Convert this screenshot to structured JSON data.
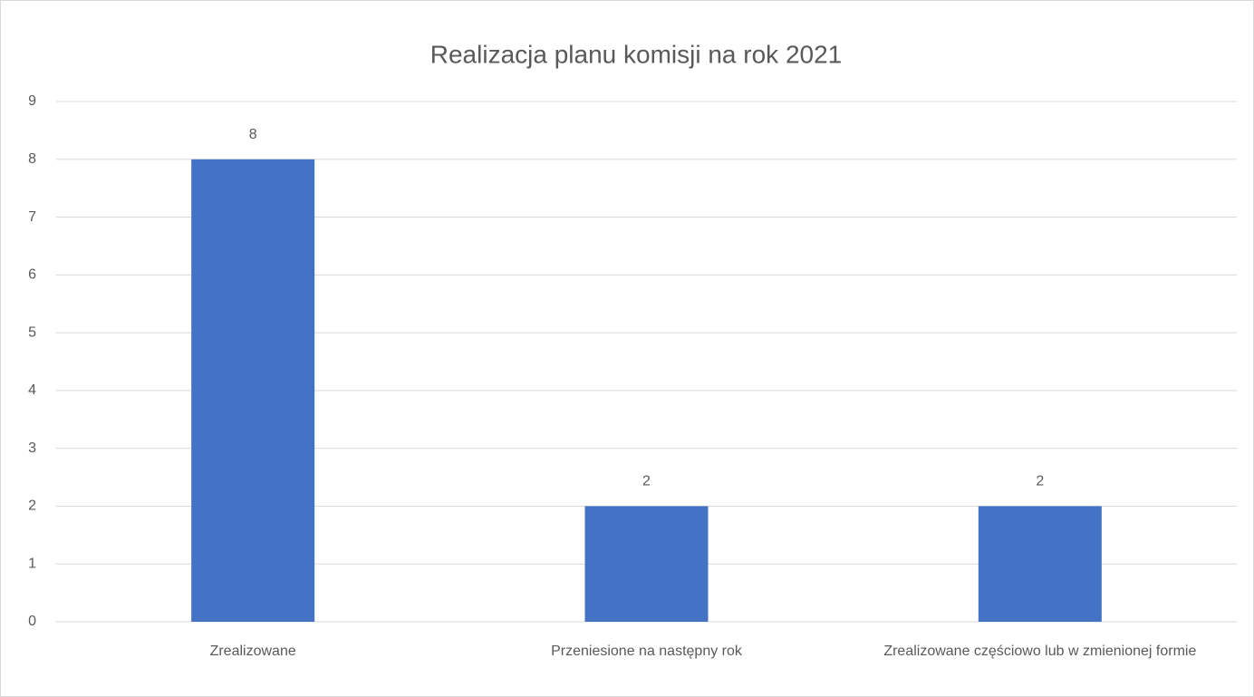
{
  "chart_data": {
    "type": "bar",
    "title": "Realizacja planu komisji na rok 2021",
    "categories": [
      "Zrealizowane",
      "Przeniesione na następny rok",
      "Zrealizowane częściowo lub w zmienionej formie"
    ],
    "values": [
      8,
      2,
      2
    ],
    "color": "#4472c4",
    "ylim": [
      0,
      9
    ],
    "yticks": [
      0,
      1,
      2,
      3,
      4,
      5,
      6,
      7,
      8,
      9
    ],
    "grid": true
  }
}
